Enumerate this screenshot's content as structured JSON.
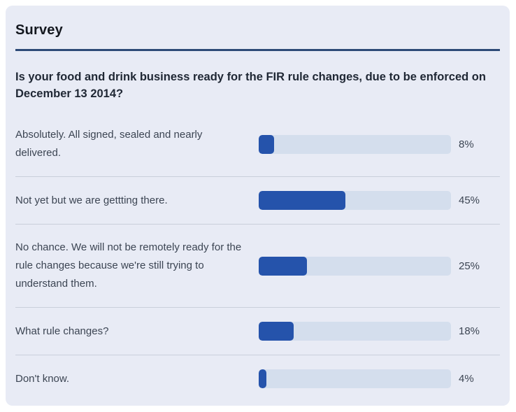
{
  "card": {
    "title": "Survey",
    "question": "Is your food and drink business ready for the FIR rule changes, due to be enforced on December 13 2014?"
  },
  "colors": {
    "card_background": "#e8ebf5",
    "title_divider": "#2d4a77",
    "bar_fill": "#2553ab",
    "bar_track": "#d4deed",
    "row_divider": "#c9cfdb"
  },
  "chart_data": {
    "type": "bar",
    "orientation": "horizontal",
    "title": "Survey",
    "subtitle": "Is your food and drink business ready for the FIR rule changes, due to be enforced on December 13 2014?",
    "categories": [
      "Absolutely. All signed, sealed and nearly delivered.",
      "Not yet but we are gettting there.",
      "No chance. We will not be remotely ready for the rule changes because we're still trying to understand them.",
      "What rule changes?",
      "Don't know."
    ],
    "values": [
      8,
      45,
      25,
      18,
      4
    ],
    "value_labels": [
      "8%",
      "45%",
      "25%",
      "18%",
      "4%"
    ],
    "xlim": [
      0,
      100
    ],
    "xlabel": "",
    "ylabel": "",
    "grid": false,
    "legend": "none"
  }
}
